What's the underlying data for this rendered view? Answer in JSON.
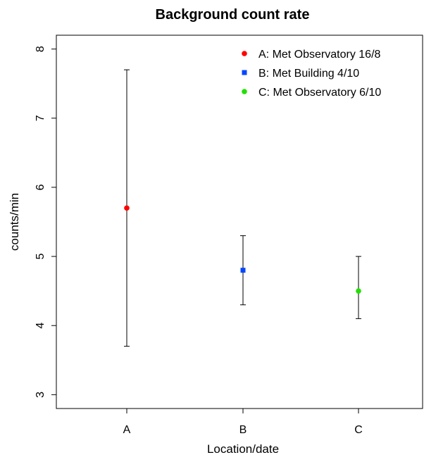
{
  "chart_data": {
    "type": "scatter",
    "title": "Background count rate",
    "xlabel": "Location/date",
    "ylabel": "counts/min",
    "categories": [
      "A",
      "B",
      "C"
    ],
    "ylim": [
      2.8,
      8.2
    ],
    "yticks": [
      3,
      4,
      5,
      6,
      7,
      8
    ],
    "grid": false,
    "legend_position": "top-right",
    "series": [
      {
        "name": "A: Met Observatory 16/8",
        "category": "A",
        "value": 5.7,
        "error_low": 3.7,
        "error_high": 7.7,
        "color": "#ff0000",
        "marker": "circle"
      },
      {
        "name": "B: Met Building 4/10",
        "category": "B",
        "value": 4.8,
        "error_low": 4.3,
        "error_high": 5.3,
        "color": "#0047ff",
        "marker": "square"
      },
      {
        "name": "C: Met Observatory 6/10",
        "category": "C",
        "value": 4.5,
        "error_low": 4.1,
        "error_high": 5.0,
        "color": "#22e000",
        "marker": "circle"
      }
    ]
  }
}
